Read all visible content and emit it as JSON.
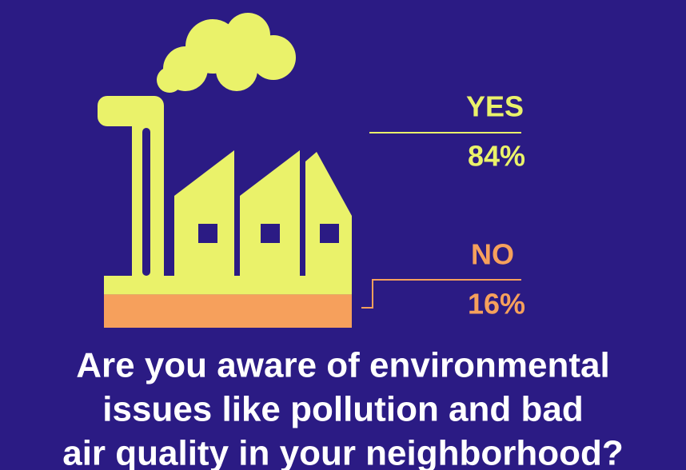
{
  "chart_data": {
    "type": "pictogram",
    "title": [
      "Are you aware of environmental",
      "issues like pollution and bad",
      "air quality in your neighborhood?"
    ],
    "categories": [
      "YES",
      "NO"
    ],
    "values": [
      84,
      16
    ],
    "value_labels": [
      "84%",
      "16%"
    ],
    "colors": [
      "#eaf26a",
      "#f6a05c"
    ]
  }
}
